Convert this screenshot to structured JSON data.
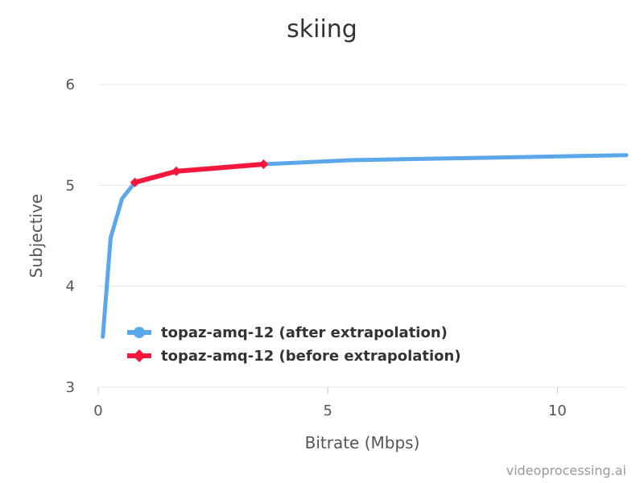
{
  "chart_data": {
    "type": "line",
    "title": "skiing",
    "xlabel": "Bitrate (Mbps)",
    "ylabel": "Subjective",
    "xlim": [
      0,
      11.5
    ],
    "ylim": [
      3,
      6
    ],
    "xticks": [
      0,
      5,
      10
    ],
    "yticks": [
      3,
      4,
      5,
      6
    ],
    "grid": true,
    "legend_position": "bottom-left",
    "series": [
      {
        "name": "topaz-amq-12 (after extrapolation)",
        "color": "#5aa7ea",
        "marker": "circle",
        "x": [
          0.1,
          0.27,
          0.52,
          0.8,
          1.7,
          3.6,
          5.5,
          11.5
        ],
        "y": [
          3.5,
          4.48,
          4.87,
          5.03,
          5.14,
          5.21,
          5.25,
          5.3
        ]
      },
      {
        "name": "topaz-amq-12 (before extrapolation)",
        "color": "#f5173d",
        "marker": "diamond",
        "x": [
          0.8,
          1.7,
          3.6
        ],
        "y": [
          5.03,
          5.14,
          5.21
        ]
      }
    ]
  },
  "credit": "videoprocessing.ai"
}
